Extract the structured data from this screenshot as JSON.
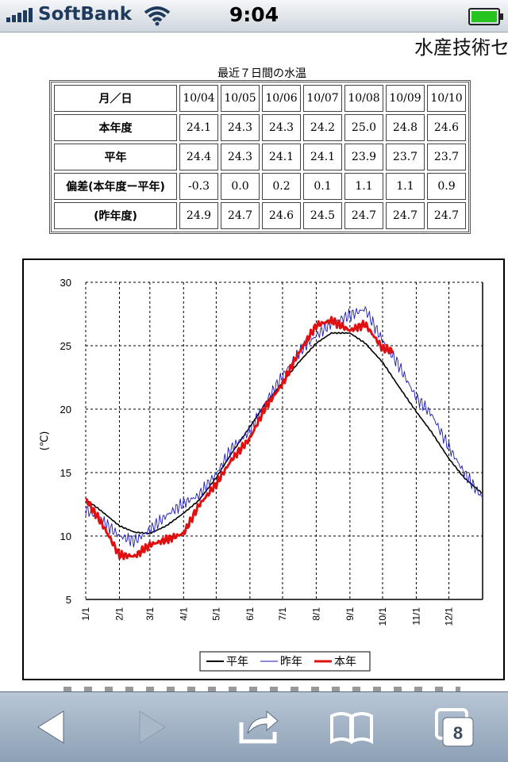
{
  "status_bar": {
    "carrier": "SoftBank",
    "time": "9:04"
  },
  "page": {
    "site_title": "水産技術セ",
    "table_caption": "最近７日間の水温",
    "table": {
      "header_label": "月／日",
      "dates": [
        "10/04",
        "10/05",
        "10/06",
        "10/07",
        "10/08",
        "10/09",
        "10/10"
      ],
      "rows": [
        {
          "label": "本年度",
          "values": [
            "24.1",
            "24.3",
            "24.3",
            "24.2",
            "25.0",
            "24.8",
            "24.6"
          ]
        },
        {
          "label": "平年",
          "values": [
            "24.4",
            "24.3",
            "24.1",
            "24.1",
            "23.9",
            "23.7",
            "23.7"
          ]
        },
        {
          "label": "偏差(本年度ー平年)",
          "values": [
            "-0.3",
            "0.0",
            "0.2",
            "0.1",
            "1.1",
            "1.1",
            "0.9"
          ]
        },
        {
          "label": "(昨年度)",
          "values": [
            "24.9",
            "24.7",
            "24.6",
            "24.5",
            "24.7",
            "24.7",
            "24.7"
          ]
        }
      ]
    }
  },
  "chart_data": {
    "type": "line",
    "ylabel": "(℃)",
    "xlabel": "",
    "ylim": [
      5,
      30
    ],
    "yticks": [
      "5",
      "10",
      "15",
      "20",
      "25",
      "30"
    ],
    "xticks": [
      "1/1",
      "2/1",
      "3/1",
      "4/1",
      "5/1",
      "6/1",
      "7/1",
      "8/1",
      "9/1",
      "10/1",
      "11/1",
      "12/1"
    ],
    "grid": true,
    "legend_position": "bottom",
    "x_unit": "day_of_year",
    "series": [
      {
        "name": "平年",
        "color": "#000000",
        "x": [
          1,
          15,
          32,
          46,
          60,
          75,
          91,
          105,
          121,
          135,
          152,
          166,
          182,
          196,
          213,
          227,
          244,
          258,
          274,
          288,
          305,
          319,
          335,
          349,
          365
        ],
        "values": [
          12.9,
          12.0,
          10.8,
          10.3,
          10.2,
          10.8,
          11.8,
          12.8,
          14.6,
          16.5,
          18.6,
          20.4,
          22.1,
          23.6,
          25.2,
          26.0,
          26.0,
          25.2,
          23.7,
          21.9,
          19.8,
          18.2,
          16.1,
          14.6,
          13.4
        ]
      },
      {
        "name": "昨年",
        "color": "#1a1ab8",
        "x": [
          1,
          15,
          32,
          46,
          60,
          75,
          91,
          105,
          121,
          135,
          152,
          166,
          182,
          196,
          213,
          227,
          244,
          258,
          274,
          288,
          305,
          319,
          335,
          349,
          365
        ],
        "values": [
          12.1,
          11.3,
          10.0,
          9.6,
          10.5,
          11.6,
          12.6,
          13.2,
          14.9,
          16.9,
          18.3,
          20.5,
          22.6,
          24.4,
          25.8,
          26.8,
          27.4,
          27.9,
          25.4,
          23.6,
          20.9,
          19.6,
          17.0,
          15.0,
          13.1
        ]
      },
      {
        "name": "本年",
        "color": "#e01010",
        "x": [
          1,
          15,
          32,
          46,
          60,
          75,
          91,
          105,
          121,
          135,
          152,
          166,
          182,
          196,
          213,
          227,
          244,
          258,
          274,
          283
        ],
        "values": [
          12.9,
          11.1,
          8.5,
          8.4,
          9.3,
          9.7,
          10.2,
          12.4,
          14.1,
          16.0,
          17.7,
          20.1,
          22.0,
          24.3,
          26.6,
          27.0,
          26.2,
          26.7,
          24.8,
          24.6
        ]
      }
    ]
  }
}
